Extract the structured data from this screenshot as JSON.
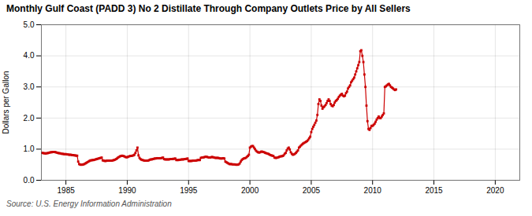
{
  "chart_data": {
    "type": "line",
    "title": "Monthly Gulf Coast (PADD 3) No 2 Distillate Through Company Outlets Price by All Sellers",
    "ylabel": "Dollars per Gallon",
    "source": "Source: U.S. Energy Information Administration",
    "color": "#cc0000",
    "marker": "square",
    "grid": true,
    "xlim": [
      1983,
      2022
    ],
    "ylim": [
      0.0,
      5.0
    ],
    "xticks": [
      1985,
      1990,
      1995,
      2000,
      2005,
      2010,
      2015,
      2020
    ],
    "yticks": [
      {
        "value": 0.0,
        "label": "0.0"
      },
      {
        "value": 1.0,
        "label": "1.0"
      },
      {
        "value": 2.0,
        "label": "2.0"
      },
      {
        "value": 3.0,
        "label": "3.0"
      },
      {
        "value": 4.0,
        "label": "4.0"
      },
      {
        "value": 5.0,
        "label": "5.0"
      }
    ],
    "x": [
      1983.0,
      1983.083,
      1983.167,
      1983.25,
      1983.333,
      1983.417,
      1983.5,
      1983.583,
      1983.667,
      1983.75,
      1983.833,
      1983.917,
      1984.0,
      1984.083,
      1984.167,
      1984.25,
      1984.333,
      1984.417,
      1984.5,
      1984.583,
      1984.667,
      1984.75,
      1984.833,
      1984.917,
      1985.0,
      1985.083,
      1985.167,
      1985.25,
      1985.333,
      1985.417,
      1985.5,
      1985.583,
      1985.667,
      1985.75,
      1985.833,
      1985.917,
      1986.0,
      1986.083,
      1986.167,
      1986.25,
      1986.333,
      1986.417,
      1986.5,
      1986.583,
      1986.667,
      1986.75,
      1986.833,
      1986.917,
      1987.0,
      1987.083,
      1987.167,
      1987.25,
      1987.333,
      1987.417,
      1987.5,
      1987.583,
      1987.667,
      1987.75,
      1987.833,
      1987.917,
      1988.0,
      1988.083,
      1988.167,
      1988.25,
      1988.333,
      1988.417,
      1988.5,
      1988.583,
      1988.667,
      1988.75,
      1988.833,
      1988.917,
      1989.0,
      1989.083,
      1989.167,
      1989.25,
      1989.333,
      1989.417,
      1989.5,
      1989.583,
      1989.667,
      1989.75,
      1989.833,
      1989.917,
      1990.0,
      1990.083,
      1990.167,
      1990.25,
      1990.333,
      1990.417,
      1990.5,
      1990.583,
      1990.667,
      1990.75,
      1990.833,
      1990.917,
      1991.0,
      1991.083,
      1991.167,
      1991.25,
      1991.333,
      1991.417,
      1991.5,
      1991.583,
      1991.667,
      1991.75,
      1991.833,
      1991.917,
      1992.0,
      1992.083,
      1992.167,
      1992.25,
      1992.333,
      1992.417,
      1992.5,
      1992.583,
      1992.667,
      1992.75,
      1992.833,
      1992.917,
      1993.0,
      1993.083,
      1993.167,
      1993.25,
      1993.333,
      1993.417,
      1993.5,
      1993.583,
      1993.667,
      1993.75,
      1993.833,
      1993.917,
      1994.0,
      1994.083,
      1994.167,
      1994.25,
      1994.333,
      1994.417,
      1994.5,
      1994.583,
      1994.667,
      1994.75,
      1994.833,
      1994.917,
      1995.0,
      1995.083,
      1995.167,
      1995.25,
      1995.333,
      1995.417,
      1995.5,
      1995.583,
      1995.667,
      1995.75,
      1995.833,
      1995.917,
      1996.0,
      1996.083,
      1996.167,
      1996.25,
      1996.333,
      1996.417,
      1996.5,
      1996.583,
      1996.667,
      1996.75,
      1996.833,
      1996.917,
      1997.0,
      1997.083,
      1997.167,
      1997.25,
      1997.333,
      1997.417,
      1997.5,
      1997.583,
      1997.667,
      1997.75,
      1997.833,
      1997.917,
      1998.0,
      1998.083,
      1998.167,
      1998.25,
      1998.333,
      1998.417,
      1998.5,
      1998.583,
      1998.667,
      1998.75,
      1998.833,
      1998.917,
      1999.0,
      1999.083,
      1999.167,
      1999.25,
      1999.333,
      1999.417,
      1999.5,
      1999.583,
      1999.667,
      1999.75,
      1999.833,
      1999.917,
      2000.0,
      2000.083,
      2000.167,
      2000.25,
      2000.333,
      2000.417,
      2000.5,
      2000.583,
      2000.667,
      2000.75,
      2000.833,
      2000.917,
      2001.0,
      2001.083,
      2001.167,
      2001.25,
      2001.333,
      2001.417,
      2001.5,
      2001.583,
      2001.667,
      2001.75,
      2001.833,
      2001.917,
      2002.0,
      2002.083,
      2002.167,
      2002.25,
      2002.333,
      2002.417,
      2002.5,
      2002.583,
      2002.667,
      2002.75,
      2002.833,
      2002.917,
      2003.0,
      2003.083,
      2003.167,
      2003.25,
      2003.333,
      2003.417,
      2003.5,
      2003.583,
      2003.667,
      2003.75,
      2003.833,
      2003.917,
      2004.0,
      2004.083,
      2004.167,
      2004.25,
      2004.333,
      2004.417,
      2004.5,
      2004.583,
      2004.667,
      2004.75,
      2004.833,
      2004.917,
      2005.0,
      2005.083,
      2005.167,
      2005.25,
      2005.333,
      2005.417,
      2005.5,
      2005.583,
      2005.667,
      2005.75,
      2005.833,
      2005.917,
      2006.0,
      2006.083,
      2006.167,
      2006.25,
      2006.333,
      2006.417,
      2006.5,
      2006.583,
      2006.667,
      2006.75,
      2006.833,
      2006.917,
      2007.0,
      2007.083,
      2007.167,
      2007.25,
      2007.333,
      2007.417,
      2007.5,
      2007.583,
      2007.667,
      2007.75,
      2007.833,
      2007.917,
      2008.0,
      2008.083,
      2008.167,
      2008.25,
      2008.333,
      2008.417,
      2008.5,
      2008.583,
      2008.667,
      2008.75,
      2008.833,
      2008.917,
      2009.0,
      2009.083,
      2009.167,
      2009.25,
      2009.333,
      2009.417,
      2009.5,
      2009.583,
      2009.667,
      2009.75,
      2009.833,
      2009.917,
      2010.0,
      2010.083,
      2010.167,
      2010.25,
      2010.333,
      2010.417,
      2010.5,
      2010.583,
      2010.667,
      2010.75,
      2010.833,
      2010.917,
      2011.0,
      2011.083,
      2011.167,
      2011.25,
      2011.333,
      2011.417,
      2011.5,
      2011.583,
      2011.667,
      2011.75,
      2011.833,
      2011.917
    ],
    "values": [
      0.88,
      0.88,
      0.87,
      0.87,
      0.86,
      0.87,
      0.87,
      0.88,
      0.89,
      0.9,
      0.9,
      0.91,
      0.91,
      0.91,
      0.9,
      0.89,
      0.88,
      0.87,
      0.87,
      0.86,
      0.85,
      0.85,
      0.84,
      0.84,
      0.84,
      0.83,
      0.83,
      0.82,
      0.82,
      0.82,
      0.81,
      0.81,
      0.8,
      0.8,
      0.79,
      0.79,
      0.6,
      0.52,
      0.5,
      0.5,
      0.5,
      0.51,
      0.52,
      0.54,
      0.56,
      0.58,
      0.6,
      0.62,
      0.64,
      0.64,
      0.65,
      0.65,
      0.66,
      0.67,
      0.68,
      0.69,
      0.7,
      0.71,
      0.72,
      0.73,
      0.64,
      0.63,
      0.62,
      0.62,
      0.63,
      0.63,
      0.63,
      0.63,
      0.63,
      0.63,
      0.64,
      0.65,
      0.66,
      0.68,
      0.7,
      0.73,
      0.75,
      0.77,
      0.78,
      0.79,
      0.78,
      0.77,
      0.75,
      0.74,
      0.74,
      0.76,
      0.77,
      0.78,
      0.78,
      0.79,
      0.8,
      0.82,
      0.88,
      0.96,
      1.05,
      0.8,
      0.72,
      0.68,
      0.66,
      0.65,
      0.64,
      0.63,
      0.63,
      0.63,
      0.63,
      0.64,
      0.66,
      0.67,
      0.67,
      0.68,
      0.69,
      0.7,
      0.7,
      0.71,
      0.71,
      0.71,
      0.71,
      0.71,
      0.72,
      0.73,
      0.68,
      0.67,
      0.67,
      0.67,
      0.67,
      0.67,
      0.68,
      0.68,
      0.68,
      0.69,
      0.69,
      0.7,
      0.65,
      0.65,
      0.65,
      0.66,
      0.66,
      0.67,
      0.67,
      0.67,
      0.68,
      0.68,
      0.69,
      0.7,
      0.62,
      0.62,
      0.62,
      0.62,
      0.63,
      0.63,
      0.63,
      0.63,
      0.64,
      0.65,
      0.65,
      0.65,
      0.72,
      0.73,
      0.73,
      0.74,
      0.75,
      0.76,
      0.75,
      0.74,
      0.73,
      0.73,
      0.74,
      0.75,
      0.74,
      0.73,
      0.72,
      0.72,
      0.72,
      0.72,
      0.71,
      0.7,
      0.7,
      0.7,
      0.71,
      0.7,
      0.6,
      0.58,
      0.56,
      0.54,
      0.52,
      0.52,
      0.52,
      0.51,
      0.51,
      0.51,
      0.5,
      0.5,
      0.5,
      0.51,
      0.54,
      0.6,
      0.65,
      0.68,
      0.7,
      0.71,
      0.72,
      0.75,
      0.78,
      0.82,
      1.05,
      1.08,
      1.1,
      1.1,
      1.05,
      1.0,
      0.95,
      0.92,
      0.9,
      0.89,
      0.9,
      0.92,
      0.92,
      0.91,
      0.9,
      0.88,
      0.87,
      0.86,
      0.85,
      0.83,
      0.81,
      0.8,
      0.79,
      0.78,
      0.73,
      0.72,
      0.72,
      0.73,
      0.74,
      0.76,
      0.77,
      0.77,
      0.78,
      0.8,
      0.85,
      0.88,
      0.96,
      1.02,
      1.05,
      0.99,
      0.9,
      0.85,
      0.82,
      0.83,
      0.85,
      0.88,
      0.92,
      0.96,
      1.05,
      1.08,
      1.12,
      1.15,
      1.18,
      1.2,
      1.22,
      1.24,
      1.26,
      1.3,
      1.35,
      1.4,
      1.55,
      1.65,
      1.72,
      1.78,
      1.85,
      1.92,
      2.1,
      2.45,
      2.6,
      2.55,
      2.4,
      2.3,
      2.35,
      2.38,
      2.42,
      2.48,
      2.55,
      2.6,
      2.55,
      2.45,
      2.4,
      2.38,
      2.42,
      2.5,
      2.55,
      2.58,
      2.62,
      2.68,
      2.72,
      2.75,
      2.78,
      2.72,
      2.7,
      2.72,
      2.8,
      2.85,
      2.95,
      3.0,
      3.05,
      3.15,
      3.2,
      3.25,
      3.3,
      3.4,
      3.5,
      3.6,
      3.7,
      3.8,
      4.15,
      4.18,
      4.0,
      3.8,
      3.4,
      3.0,
      2.4,
      1.9,
      1.65,
      1.62,
      1.68,
      1.75,
      1.75,
      1.78,
      1.82,
      1.88,
      1.95,
      2.0,
      2.05,
      2.0,
      2.0,
      2.05,
      2.1,
      2.15,
      3.0,
      3.02,
      3.05,
      3.08,
      3.1,
      3.05,
      3.0,
      2.98,
      2.95,
      2.92,
      2.9,
      2.92
    ]
  }
}
